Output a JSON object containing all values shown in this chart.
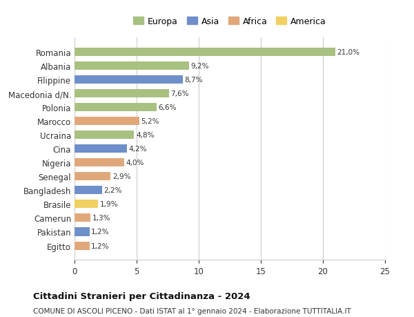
{
  "categories": [
    "Egitto",
    "Pakistan",
    "Camerun",
    "Brasile",
    "Bangladesh",
    "Senegal",
    "Nigeria",
    "Cina",
    "Ucraina",
    "Marocco",
    "Polonia",
    "Macedonia d/N.",
    "Filippine",
    "Albania",
    "Romania"
  ],
  "values": [
    1.2,
    1.2,
    1.3,
    1.9,
    2.2,
    2.9,
    4.0,
    4.2,
    4.8,
    5.2,
    6.6,
    7.6,
    8.7,
    9.2,
    21.0
  ],
  "labels": [
    "1,2%",
    "1,2%",
    "1,3%",
    "1,9%",
    "2,2%",
    "2,9%",
    "4,0%",
    "4,2%",
    "4,8%",
    "5,2%",
    "6,6%",
    "7,6%",
    "8,7%",
    "9,2%",
    "21,0%"
  ],
  "continent": [
    "Africa",
    "Asia",
    "Africa",
    "America",
    "Asia",
    "Africa",
    "Africa",
    "Asia",
    "Europa",
    "Africa",
    "Europa",
    "Europa",
    "Asia",
    "Europa",
    "Europa"
  ],
  "colors": {
    "Europa": "#a8c080",
    "Asia": "#6e8fc9",
    "Africa": "#e0a87a",
    "America": "#f0d060"
  },
  "legend_order": [
    "Europa",
    "Asia",
    "Africa",
    "America"
  ],
  "title": "Cittadini Stranieri per Cittadinanza - 2024",
  "subtitle": "COMUNE DI ASCOLI PICENO - Dati ISTAT al 1° gennaio 2024 - Elaborazione TUTTITALIA.IT",
  "xlim": [
    0,
    25
  ],
  "xticks": [
    0,
    5,
    10,
    15,
    20,
    25
  ],
  "background_color": "#ffffff",
  "grid_color": "#cccccc"
}
